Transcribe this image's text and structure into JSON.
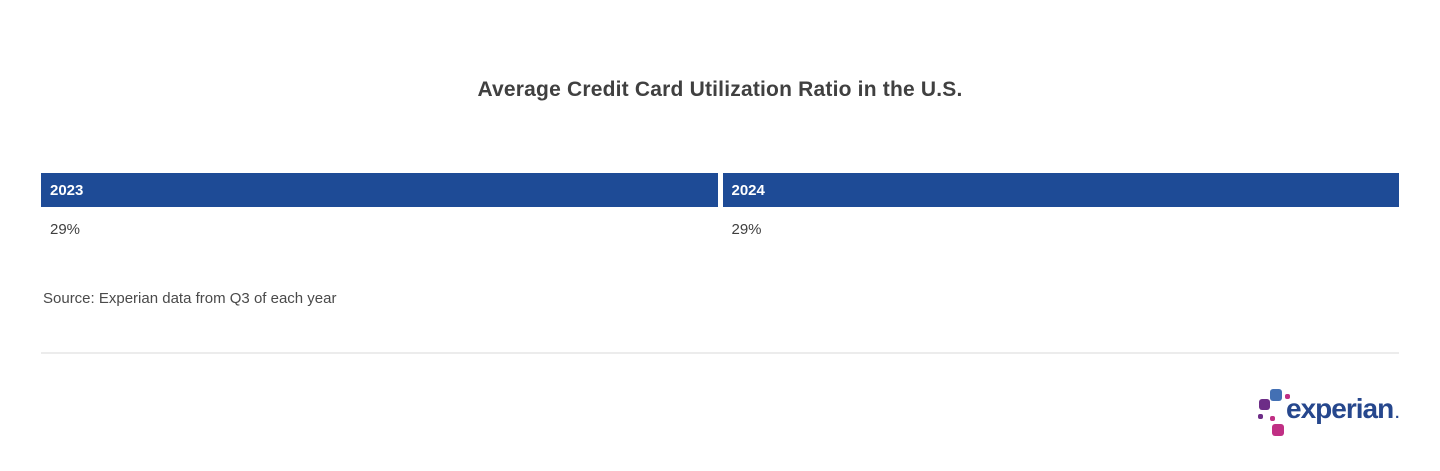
{
  "title": "Average Credit Card Utilization Ratio in the U.S.",
  "table": {
    "columns": [
      {
        "header": "2023",
        "value": "29%"
      },
      {
        "header": "2024",
        "value": "29%"
      }
    ]
  },
  "source": "Source: Experian data from Q3 of each year",
  "logo": {
    "wordmark": "experian",
    "trademark": "."
  },
  "colors": {
    "table_header_bg": "#1e4b96",
    "title_text": "#404040",
    "value_text": "#3f3f3f",
    "source_text": "#4a4a4a",
    "divider": "#ececec",
    "logo_wordmark": "#26478d",
    "logo_blue_block": "#4370b4",
    "logo_purple_block": "#6d2d87",
    "logo_magenta_block": "#c02f84"
  },
  "chart_data": {
    "type": "table",
    "title": "Average Credit Card Utilization Ratio in the U.S.",
    "categories": [
      "2023",
      "2024"
    ],
    "values": [
      "29%",
      "29%"
    ],
    "values_numeric_percent": [
      29,
      29
    ],
    "source": "Source: Experian data from Q3 of each year",
    "layout": {
      "header_bg": "#1e4b96",
      "header_text_color": "#ffffff",
      "grid": false,
      "legend": "none"
    }
  }
}
